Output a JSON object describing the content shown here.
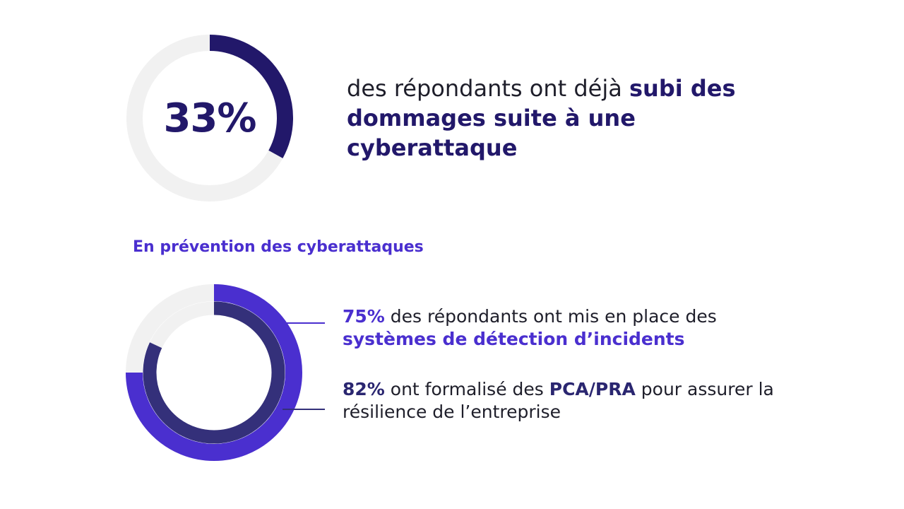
{
  "chart_data": [
    {
      "type": "pie",
      "value_label": "33%",
      "values": [
        33,
        67
      ],
      "colors": {
        "filled": "#22186a",
        "track": "#f1f1f1"
      },
      "text": {
        "pre": "des répondants ont déjà ",
        "bold": "subi des dommages suite à une cyberattaque"
      }
    },
    {
      "type": "pie",
      "title": "En prévention des cyberattaques",
      "series": [
        {
          "value": 75,
          "value_label": "75%",
          "color": "#4a2fcf",
          "text": {
            "mid": " des répondants ont mis en place des ",
            "bold": "systèmes de détection d’incidents"
          }
        },
        {
          "value": 82,
          "value_label": "82%",
          "color": "#34307a",
          "text": {
            "pre": " ont formalisé des ",
            "bold": "PCA/PRA",
            "post": " pour assurer la résilience de l’entreprise"
          }
        }
      ],
      "track_color": "#f1f1f1"
    }
  ]
}
